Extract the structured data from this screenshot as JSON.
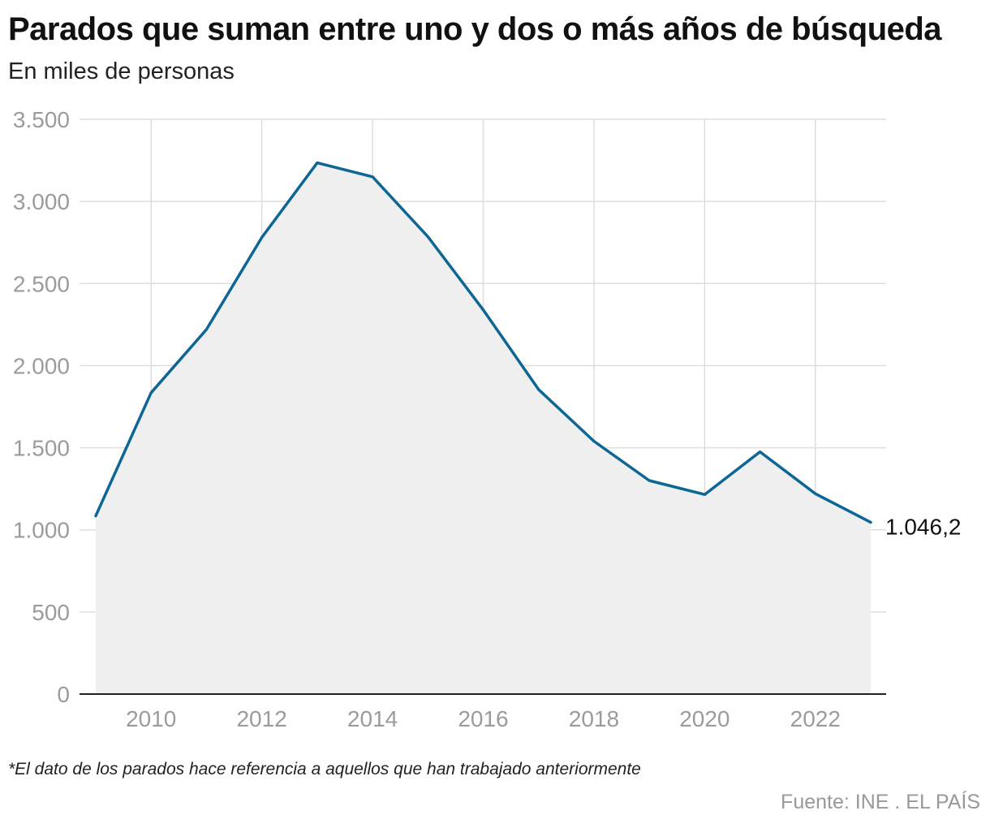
{
  "title": "Parados que suman entre uno y dos o más años de búsqueda",
  "subtitle": "En miles de personas",
  "note": "*El dato de los parados hace referencia a aquellos que han trabajado anteriormente",
  "source": "Fuente: INE . EL PAÍS",
  "colors": {
    "line": "#0e6694",
    "area": "#efefef",
    "grid": "#dddddd",
    "tick_text": "#9b9b9b",
    "axis": "#222222"
  },
  "chart_data": {
    "type": "area",
    "title": "Parados que suman entre uno y dos o más años de búsqueda",
    "subtitle": "En miles de personas",
    "xlabel": "",
    "ylabel": "",
    "ylim": [
      0,
      3500
    ],
    "xlim": [
      2009,
      2023
    ],
    "y_ticks": [
      0,
      500,
      1000,
      1500,
      2000,
      2500,
      3000,
      3500
    ],
    "y_tick_labels": [
      "0",
      "500",
      "1.000",
      "1.500",
      "2.000",
      "2.500",
      "3.000",
      "3.500"
    ],
    "x_ticks": [
      2010,
      2012,
      2014,
      2016,
      2018,
      2020,
      2022
    ],
    "x_tick_labels": [
      "2010",
      "2012",
      "2014",
      "2016",
      "2018",
      "2020",
      "2022"
    ],
    "grid": true,
    "series": [
      {
        "x": [
          2009,
          2010,
          2011,
          2012,
          2013,
          2014,
          2015,
          2016,
          2017,
          2018,
          2019,
          2020,
          2021,
          2022,
          2023
        ],
        "values": [
          1085,
          1835,
          2220,
          2780,
          3235,
          3150,
          2785,
          2340,
          1855,
          1540,
          1300,
          1215,
          1475,
          1220,
          1046.2
        ]
      }
    ],
    "annotations": [
      {
        "x": 2023,
        "y": 1046.2,
        "text": "1.046,2"
      }
    ]
  }
}
